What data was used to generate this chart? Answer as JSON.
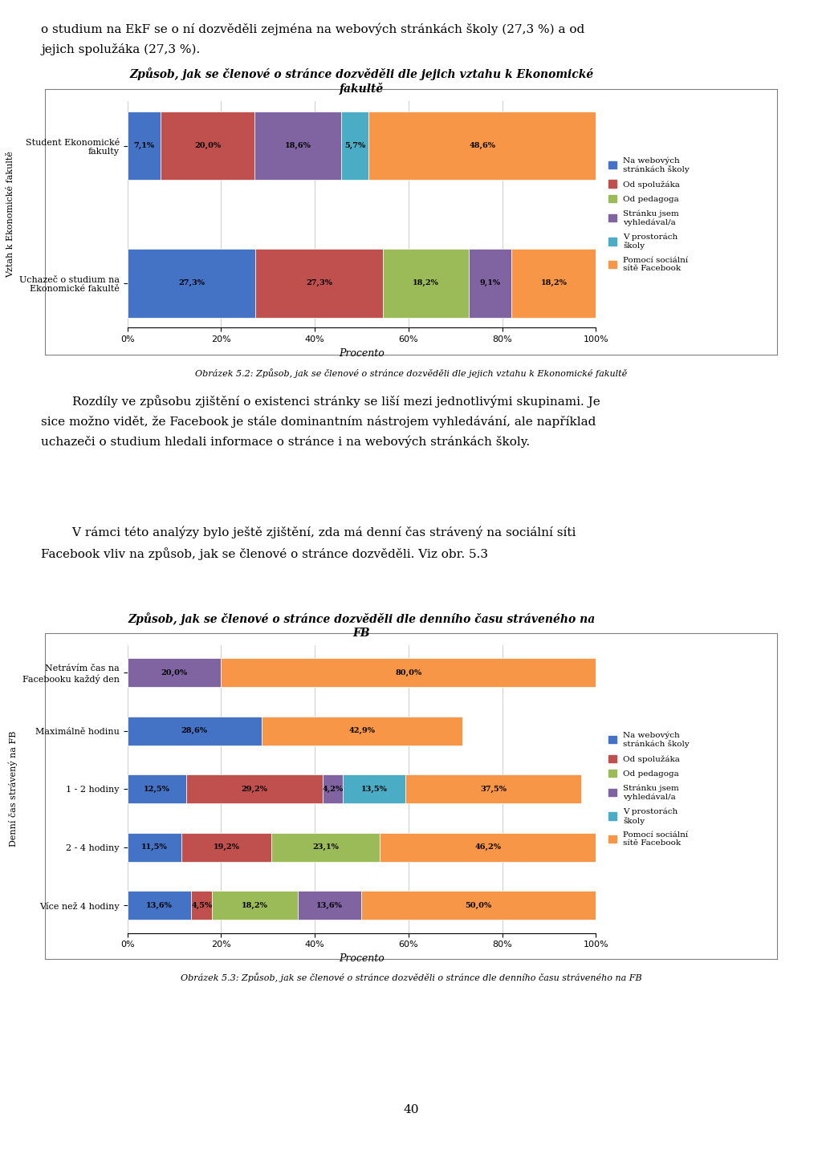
{
  "chart1": {
    "title": "Způsob, jak se členové o stránce dozvěděli dle jejich vztahu k Ekonomické\nfakultě",
    "ylabel": "Vztah k Ekonomické fakultě",
    "xlabel": "Procento",
    "categories": [
      "Uchazeč o studium na\nEkonomické fakultě",
      "Student Ekonomické\nfakulty"
    ],
    "series": [
      {
        "label": "Na webových\nstránkách školy",
        "color": "#4472C4",
        "values": [
          27.3,
          7.1
        ]
      },
      {
        "label": "Od spolužáka",
        "color": "#C0504D",
        "values": [
          27.3,
          20.0
        ]
      },
      {
        "label": "Od pedagoga",
        "color": "#9BBB59",
        "values": [
          18.2,
          0.0
        ]
      },
      {
        "label": "Stránku jsem\nvyhledával/a",
        "color": "#8064A2",
        "values": [
          9.1,
          18.6
        ]
      },
      {
        "label": "V prostorách\nškoly",
        "color": "#4BACC6",
        "values": [
          0.0,
          5.7
        ]
      },
      {
        "label": "Pomocí sociální\nsítě Facebook",
        "color": "#F79646",
        "values": [
          18.2,
          48.6
        ]
      }
    ],
    "caption": "Obrázek 5.2: Způsob, jak se členové o stránce dozvěděli dle jejich vztahu k Ekonomické fakultě"
  },
  "chart2": {
    "title": "Způsob, jak se členové o stránce dozvěděli dle denního času stráveného na\nFB",
    "ylabel": "Denní čas strávený na FB",
    "xlabel": "Procento",
    "categories": [
      "Více než 4 hodiny",
      "2 - 4 hodiny",
      "1 - 2 hodiny",
      "Maximálně hodinu",
      "Netrávím čas na\nFacebooku každý den"
    ],
    "series": [
      {
        "label": "Na webových\nstránkách školy",
        "color": "#4472C4",
        "values": [
          13.6,
          11.5,
          12.5,
          28.6,
          0.0
        ]
      },
      {
        "label": "Od spolužáka",
        "color": "#C0504D",
        "values": [
          4.5,
          19.2,
          29.2,
          0.0,
          0.0
        ]
      },
      {
        "label": "Od pedagoga",
        "color": "#9BBB59",
        "values": [
          18.2,
          23.1,
          0.0,
          0.0,
          0.0
        ]
      },
      {
        "label": "Stránku jsem\nvyhledával/a",
        "color": "#8064A2",
        "values": [
          13.6,
          0.0,
          4.2,
          0.0,
          20.0
        ]
      },
      {
        "label": "V prostorách\nškoly",
        "color": "#4BACC6",
        "values": [
          0.0,
          0.0,
          13.5,
          0.0,
          0.0
        ]
      },
      {
        "label": "Pomocí sociální\nsítě Facebook",
        "color": "#F79646",
        "values": [
          50.0,
          46.2,
          37.5,
          42.9,
          80.0
        ]
      }
    ],
    "caption": "Obrázek 5.3: Způsob, jak se členové o stránce dozvěděli o stránce dle denního času stráveného na FB"
  },
  "text_blocks": {
    "para1_line1": "o studium na EkF se o ní dozvěděli zejména na webových stránkách školy (27,3 %) a od",
    "para1_line2": "jejich spolužáka (27,3 %).",
    "para2": "        Rozdíly ve způsobu zjištění o existenci stránky se liší mezi jednotlivými skupinami. Je\nsice možno vidět, že Facebook je stále dominantním nástrojem vyhledávání, ale například\nuchazeči o studium hledali informace o stránce i na webových stránkách školy.",
    "para3": "        V rámci této analýzy bylo ještě zjištění, zda má denní čas strávený na sociální síti\nFacebook vliv na způsob, jak se členové o stránce dozvěděli. Viz obr. 5.3",
    "page_num": "40"
  },
  "background_color": "#FFFFFF",
  "chart_bg": "#FFFFFF",
  "border_color": "#808080"
}
